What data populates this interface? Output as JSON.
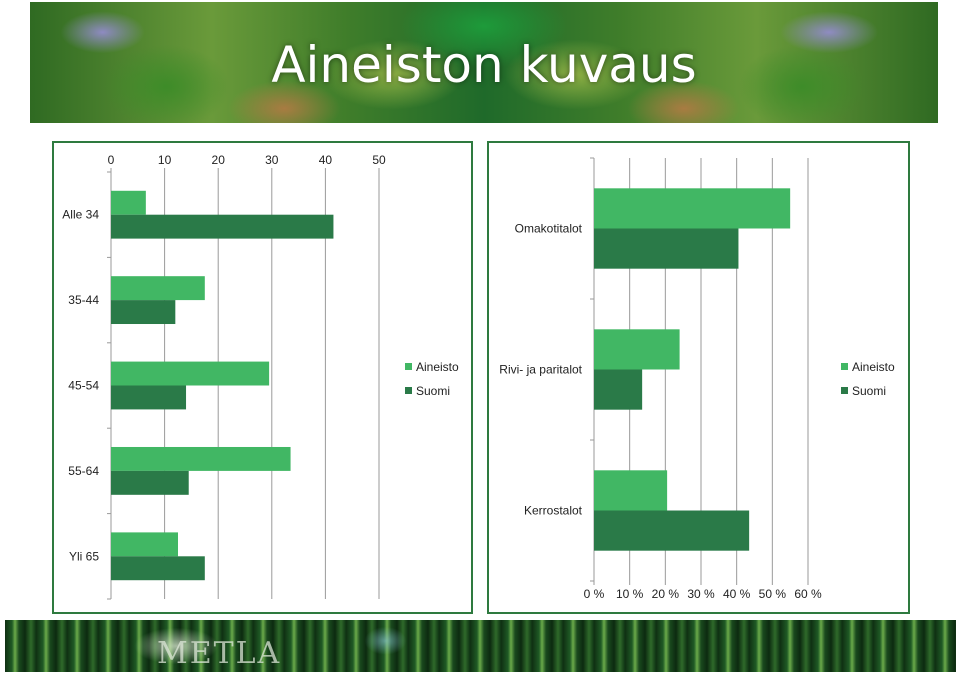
{
  "slide": {
    "title": "Aineiston kuvaus",
    "footer_logo": "METLA"
  },
  "colors": {
    "aineisto": "#41b764",
    "suomi": "#2a7a48",
    "panel_border": "#2e7a3f",
    "grid": "#9a9a9a"
  },
  "chart_data": [
    {
      "type": "bar",
      "orientation": "horizontal",
      "categories": [
        "Alle 34",
        "35-44",
        "45-54",
        "55-64",
        "Yli 65"
      ],
      "series": [
        {
          "name": "Aineisto",
          "values": [
            6.5,
            17.5,
            29.5,
            33.5,
            12.5
          ]
        },
        {
          "name": "Suomi",
          "values": [
            41.5,
            12.0,
            14.0,
            14.5,
            17.5
          ]
        }
      ],
      "xlim": [
        0,
        50
      ],
      "xticks": [
        "0",
        "10",
        "20",
        "30",
        "40",
        "50"
      ],
      "x_axis_position": "top",
      "grid": true,
      "legend": "right"
    },
    {
      "type": "bar",
      "orientation": "horizontal",
      "categories": [
        "Omakotitalot",
        "Rivi- ja paritalot",
        "Kerrostalot"
      ],
      "series": [
        {
          "name": "Aineisto",
          "values": [
            55,
            24,
            20.5
          ]
        },
        {
          "name": "Suomi",
          "values": [
            40.5,
            13.5,
            43.5
          ]
        }
      ],
      "xlim": [
        0,
        60
      ],
      "xticks": [
        "0 %",
        "10 %",
        "20 %",
        "30 %",
        "40 %",
        "50 %",
        "60 %"
      ],
      "x_axis_position": "bottom",
      "grid": true,
      "legend": "right"
    }
  ]
}
